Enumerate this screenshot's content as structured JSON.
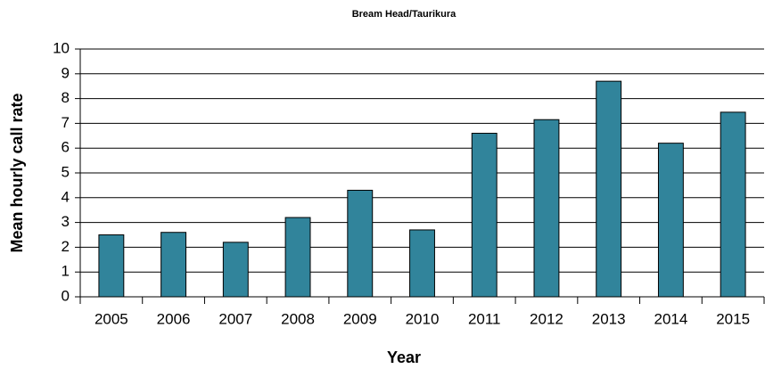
{
  "chart_data": {
    "type": "bar",
    "title": "Bream Head/Taurikura",
    "x_label": "Year",
    "y_label": "Mean hourly call rate",
    "categories": [
      "2005",
      "2006",
      "2007",
      "2008",
      "2009",
      "2010",
      "2011",
      "2012",
      "2013",
      "2014",
      "2015"
    ],
    "values": [
      2.5,
      2.6,
      2.2,
      3.2,
      4.3,
      2.7,
      6.6,
      7.15,
      8.7,
      6.2,
      7.45
    ],
    "color": "#31849b",
    "ylim": [
      0,
      10
    ],
    "yticks": [
      0,
      1,
      2,
      3,
      4,
      5,
      6,
      7,
      8,
      9,
      10
    ],
    "grid": true
  }
}
